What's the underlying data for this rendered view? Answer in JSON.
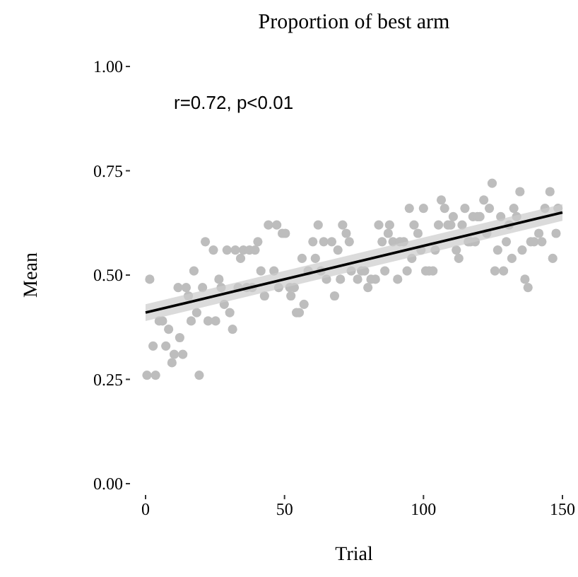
{
  "chart_data": {
    "type": "scatter",
    "title": "Proportion of best arm",
    "xlabel": "Trial",
    "ylabel": "Mean",
    "annotations": [
      "r=0.72, p<0.01"
    ],
    "xlim": [
      0,
      150
    ],
    "ylim": [
      0,
      1
    ],
    "xticks": [
      0,
      50,
      100,
      150
    ],
    "yticks": [
      {
        "value": 0,
        "label": "0.00"
      },
      {
        "value": 0.25,
        "label": "0.25"
      },
      {
        "value": 0.5,
        "label": "0.50"
      },
      {
        "value": 0.75,
        "label": "0.75"
      },
      {
        "value": 1,
        "label": "1.00"
      }
    ],
    "series": [
      {
        "marker": "circle",
        "color": "#bdbdbd",
        "x": [
          0.5,
          3.6,
          1.5,
          2.7,
          4.9,
          6.1,
          7.3,
          8.3,
          9.5,
          10.3,
          11.7,
          12.3,
          13.4,
          14.6,
          15.4,
          16.4,
          17.4,
          18.4,
          19.3,
          20.5,
          21.5,
          22.5,
          24.4,
          25.2,
          26.4,
          27.2,
          28.3,
          29.3,
          30.3,
          31.3,
          32.3,
          33.3,
          34.2,
          35.2,
          36.4,
          37.4,
          38.4,
          39.4,
          40.4,
          41.5,
          42.8,
          44.2,
          46.2,
          47.2,
          47.9,
          49.2,
          50.3,
          51.9,
          52.3,
          53.5,
          54.3,
          55.3,
          57.0,
          56.3,
          58.5,
          60.2,
          61.1,
          62.1,
          63.1,
          64.1,
          65.1,
          67.0,
          68.0,
          69.2,
          70.1,
          70.9,
          72.2,
          73.3,
          74.0,
          76.3,
          77.7,
          78.8,
          80.0,
          81.1,
          82.7,
          83.9,
          85.1,
          86.1,
          87.3,
          87.8,
          89.0,
          90.7,
          91.5,
          92.9,
          94.1,
          94.9,
          95.8,
          96.6,
          98.0,
          99.1,
          100.0,
          100.8,
          102.0,
          103.4,
          104.2,
          105.4,
          106.4,
          107.6,
          108.8,
          109.8,
          110.7,
          111.8,
          112.7,
          113.9,
          114.9,
          116.1,
          116.9,
          117.8,
          118.6,
          119.4,
          120.3,
          121.7,
          122.8,
          123.7,
          124.7,
          125.7,
          126.7,
          127.8,
          128.8,
          129.8,
          130.8,
          131.8,
          132.5,
          133.5,
          134.7,
          135.5,
          136.5,
          137.6,
          138.6,
          139.8,
          141.5,
          142.6,
          143.7,
          145.5,
          146.5,
          147.7,
          148.4
        ],
        "values": [
          0.26,
          0.26,
          0.49,
          0.33,
          0.39,
          0.39,
          0.33,
          0.37,
          0.29,
          0.31,
          0.47,
          0.35,
          0.31,
          0.47,
          0.45,
          0.39,
          0.51,
          0.41,
          0.26,
          0.47,
          0.58,
          0.39,
          0.56,
          0.39,
          0.49,
          0.47,
          0.43,
          0.56,
          0.41,
          0.37,
          0.56,
          0.47,
          0.54,
          0.56,
          0.47,
          0.56,
          0.47,
          0.56,
          0.58,
          0.51,
          0.45,
          0.62,
          0.51,
          0.62,
          0.47,
          0.6,
          0.6,
          0.47,
          0.45,
          0.47,
          0.41,
          0.41,
          0.43,
          0.54,
          0.51,
          0.58,
          0.54,
          0.62,
          0.51,
          0.58,
          0.49,
          0.58,
          0.45,
          0.56,
          0.49,
          0.62,
          0.6,
          0.58,
          0.51,
          0.49,
          0.51,
          0.51,
          0.47,
          0.49,
          0.49,
          0.62,
          0.58,
          0.51,
          0.6,
          0.62,
          0.58,
          0.49,
          0.58,
          0.58,
          0.51,
          0.66,
          0.54,
          0.62,
          0.6,
          0.56,
          0.66,
          0.51,
          0.51,
          0.51,
          0.56,
          0.62,
          0.68,
          0.66,
          0.62,
          0.62,
          0.64,
          0.56,
          0.54,
          0.62,
          0.66,
          0.58,
          0.58,
          0.64,
          0.58,
          0.64,
          0.64,
          0.68,
          0.6,
          0.66,
          0.72,
          0.51,
          0.56,
          0.64,
          0.51,
          0.58,
          0.62,
          0.54,
          0.66,
          0.64,
          0.7,
          0.56,
          0.49,
          0.47,
          0.58,
          0.58,
          0.6,
          0.58,
          0.66,
          0.7,
          0.54,
          0.6,
          0.66
        ]
      },
      {
        "type": "line",
        "color": "#000000",
        "x": [
          0,
          150
        ],
        "values": [
          0.41,
          0.65
        ],
        "lower": [
          0.39,
          0.63
        ],
        "upper": [
          0.43,
          0.67
        ]
      }
    ]
  }
}
